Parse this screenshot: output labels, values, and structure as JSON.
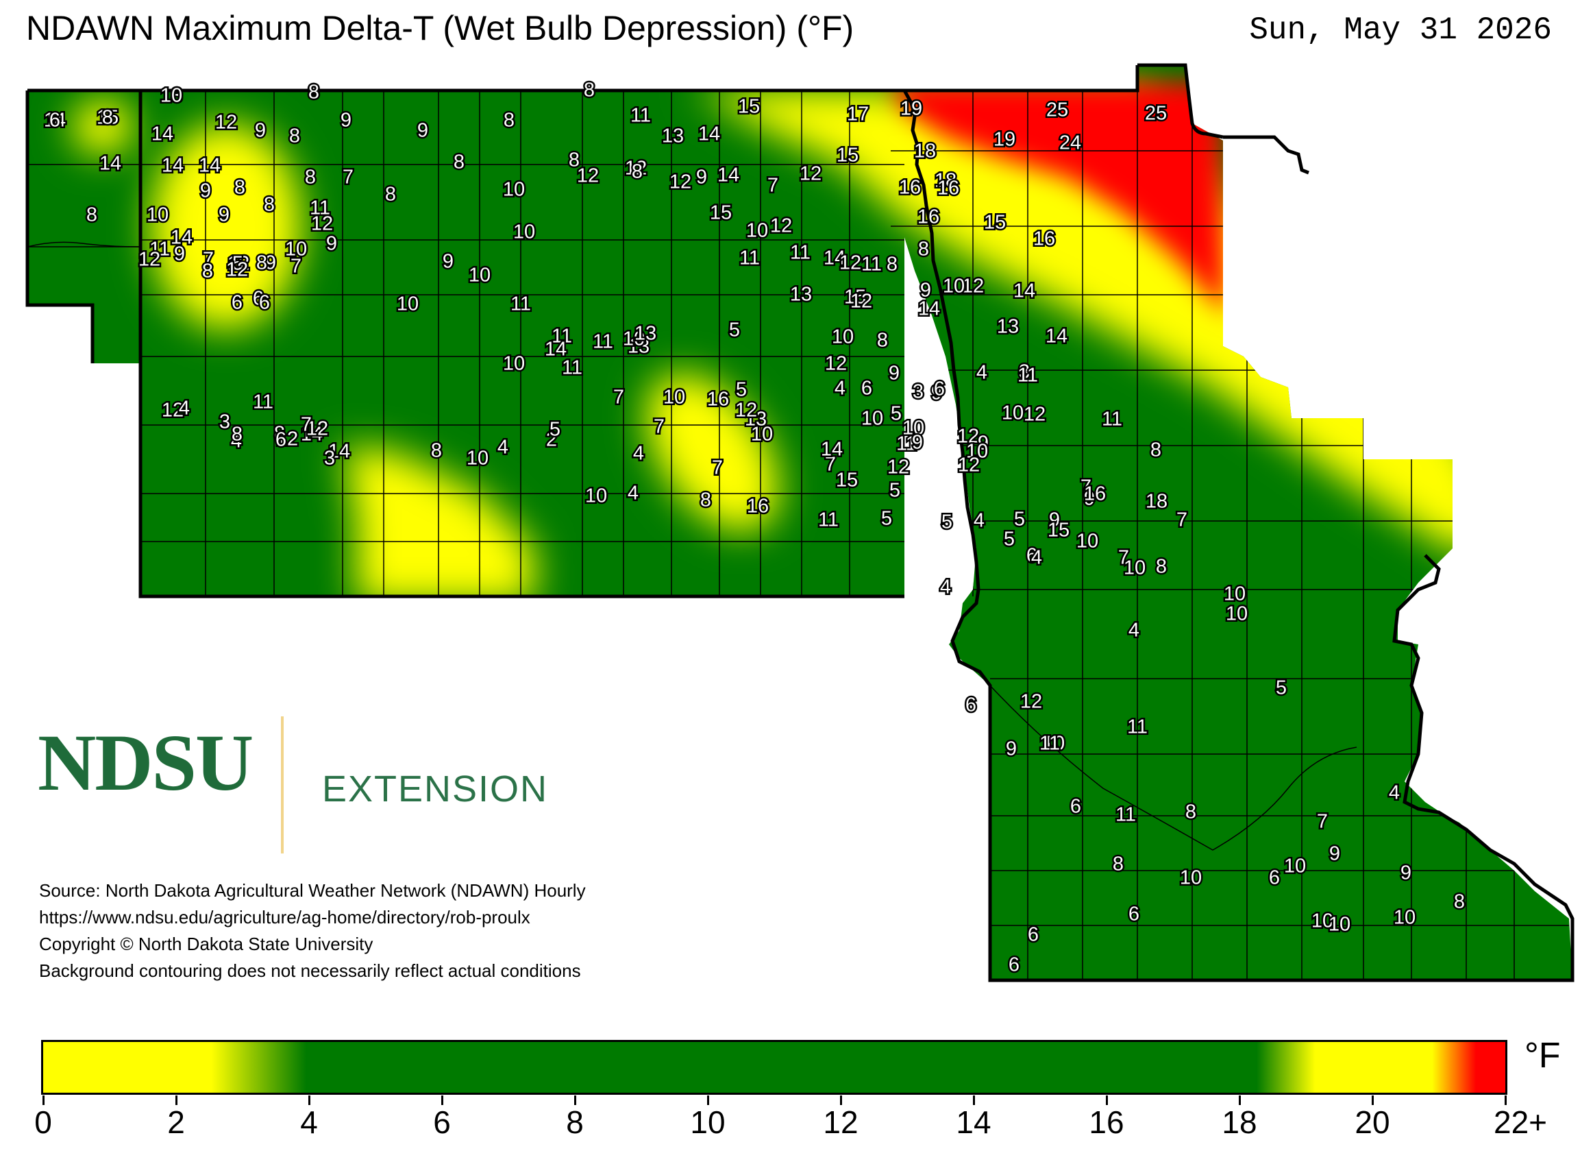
{
  "title": "NDAWN Maximum Delta-T (Wet Bulb Depression) (°F)",
  "date": "Sun, May 31 2026",
  "logo": {
    "wordmark": "NDSU",
    "subtitle": "EXTENSION"
  },
  "source_lines": [
    "Source: North Dakota Agricultural Weather Network (NDAWN) Hourly",
    "https://www.ndsu.edu/agriculture/ag-home/directory/rob-proulx",
    "Copyright © North Dakota State University",
    "Background contouring does not necessarily reflect actual conditions"
  ],
  "legend": {
    "unit": "°F",
    "ticks": [
      "0",
      "2",
      "4",
      "6",
      "8",
      "10",
      "12",
      "14",
      "16",
      "18",
      "20",
      "22+"
    ],
    "colors": {
      "low": "#ffff00",
      "mid": "#007a00",
      "high": "#ff0000"
    }
  },
  "colors": {
    "green": "#007a00",
    "yellow": "#ffff00",
    "red": "#ff0000",
    "border": "#000000"
  },
  "stations": [
    "14",
    "15",
    "13",
    "9",
    "8",
    "14",
    "12",
    "9",
    "8",
    "9",
    "9",
    "8",
    "11",
    "13",
    "14",
    "15",
    "14",
    "14",
    "14",
    "9",
    "8",
    "8",
    "7",
    "8",
    "8",
    "8",
    "10",
    "12",
    "17",
    "19",
    "25",
    "25",
    "19",
    "24",
    "18",
    "18",
    "15",
    "12",
    "14",
    "9",
    "12",
    "12",
    "8",
    "7",
    "8",
    "10",
    "9",
    "8",
    "11",
    "12",
    "15",
    "16",
    "16",
    "16",
    "15",
    "16",
    "11",
    "14",
    "9",
    "12",
    "9",
    "10",
    "9",
    "10",
    "10",
    "11",
    "12",
    "11",
    "14",
    "12",
    "8",
    "8",
    "12",
    "7",
    "5",
    "7",
    "8",
    "8",
    "9",
    "10",
    "11",
    "12",
    "13",
    "15",
    "9",
    "10",
    "14",
    "14",
    "13",
    "14",
    "12",
    "6",
    "6",
    "6",
    "8",
    "13",
    "11",
    "10",
    "12",
    "10",
    "10",
    "11",
    "11",
    "10",
    "5",
    "12",
    "11",
    "13",
    "9",
    "4",
    "3",
    "6",
    "9",
    "11",
    "12",
    "11",
    "10",
    "12",
    "9",
    "11",
    "10",
    "12",
    "14",
    "10",
    "7",
    "5",
    "4",
    "3",
    "6",
    "5",
    "9",
    "10",
    "10",
    "11",
    "8",
    "12",
    "4",
    "3",
    "8",
    "6",
    "14",
    "14",
    "12",
    "7",
    "7",
    "5",
    "8",
    "10",
    "13",
    "16",
    "12",
    "7",
    "4",
    "2",
    "4",
    "8",
    "10",
    "7",
    "7",
    "4",
    "5",
    "14",
    "15",
    "12",
    "12",
    "3",
    "4",
    "8",
    "10",
    "16",
    "11",
    "5",
    "5",
    "4",
    "5",
    "9",
    "9",
    "16",
    "18",
    "15",
    "10",
    "7",
    "4",
    "5",
    "6",
    "4",
    "7",
    "10",
    "10",
    "10",
    "8",
    "4",
    "5",
    "4",
    "7",
    "9",
    "10",
    "8",
    "6",
    "6",
    "6",
    "12",
    "10",
    "11",
    "11",
    "9",
    "6",
    "11",
    "8",
    "8",
    "10",
    "6",
    "6",
    "10",
    "10",
    "9",
    "10",
    "6",
    "8",
    "10",
    "8"
  ]
}
